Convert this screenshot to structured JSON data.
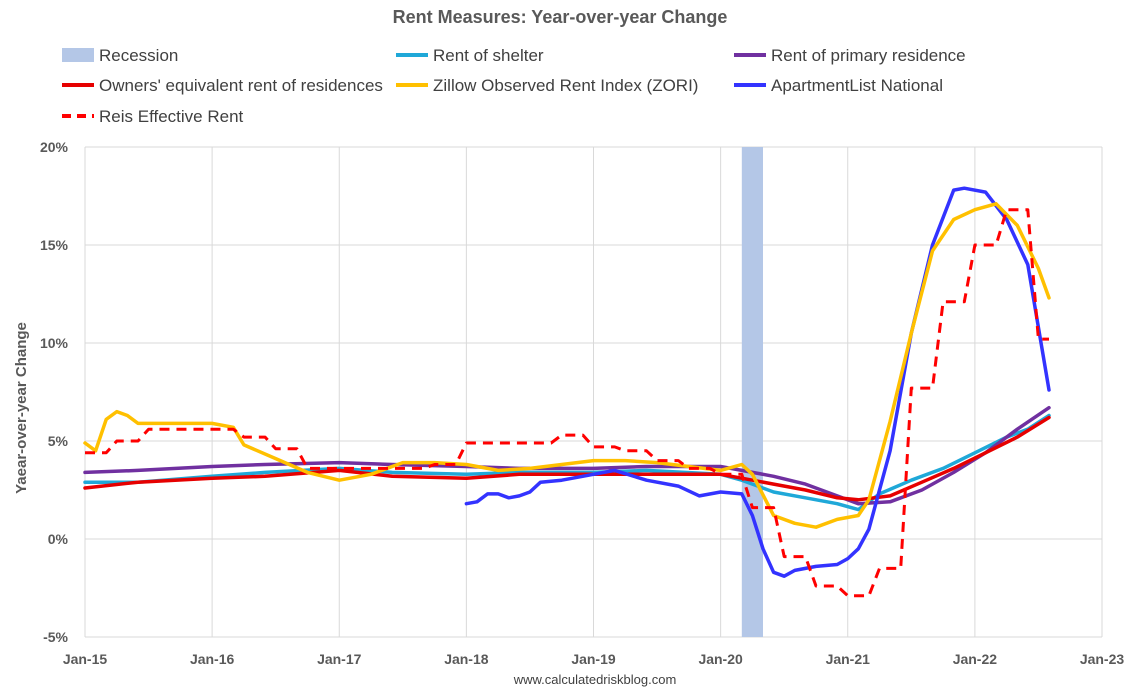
{
  "chart_data": {
    "type": "line",
    "title": "Rent Measures: Year-over-year Change",
    "ylabel": "Yaear-over-year Change",
    "xlabel": "",
    "credit": "www.calculatedriskblog.com",
    "ylim": [
      -5,
      20
    ],
    "yticks": [
      -5,
      0,
      5,
      10,
      15,
      20
    ],
    "ytick_labels": [
      "-5%",
      "0%",
      "5%",
      "10%",
      "15%",
      "20%"
    ],
    "xlim": [
      "2015-01",
      "2023-01"
    ],
    "xticks": [
      "2015-01",
      "2016-01",
      "2017-01",
      "2018-01",
      "2019-01",
      "2020-01",
      "2021-01",
      "2022-01",
      "2023-01"
    ],
    "xtick_labels": [
      "Jan-15",
      "Jan-16",
      "Jan-17",
      "Jan-18",
      "Jan-19",
      "Jan-20",
      "Jan-21",
      "Jan-22",
      "Jan-23"
    ],
    "grid": "horizontal and vertical",
    "legend_position": "top",
    "recession": {
      "name": "Recession",
      "start": "2020-03",
      "end": "2020-04",
      "color": "#b4c7e7"
    },
    "series": [
      {
        "name": "Rent of shelter",
        "color": "#1fa8d8",
        "dash": "solid",
        "points": [
          [
            "2015-01",
            2.9
          ],
          [
            "2015-06",
            2.9
          ],
          [
            "2016-01",
            3.2
          ],
          [
            "2016-06",
            3.4
          ],
          [
            "2017-01",
            3.6
          ],
          [
            "2017-06",
            3.4
          ],
          [
            "2018-01",
            3.3
          ],
          [
            "2018-06",
            3.4
          ],
          [
            "2019-01",
            3.4
          ],
          [
            "2019-06",
            3.5
          ],
          [
            "2020-01",
            3.3
          ],
          [
            "2020-03",
            3.0
          ],
          [
            "2020-06",
            2.4
          ],
          [
            "2020-09",
            2.1
          ],
          [
            "2020-12",
            1.8
          ],
          [
            "2021-02",
            1.5
          ],
          [
            "2021-04",
            2.3
          ],
          [
            "2021-07",
            3.0
          ],
          [
            "2021-10",
            3.6
          ],
          [
            "2022-01",
            4.4
          ],
          [
            "2022-04",
            5.2
          ],
          [
            "2022-06",
            5.6
          ],
          [
            "2022-08",
            6.3
          ]
        ]
      },
      {
        "name": "Rent of primary residence",
        "color": "#7030a0",
        "dash": "solid",
        "points": [
          [
            "2015-01",
            3.4
          ],
          [
            "2015-06",
            3.5
          ],
          [
            "2016-01",
            3.7
          ],
          [
            "2016-06",
            3.8
          ],
          [
            "2017-01",
            3.9
          ],
          [
            "2017-06",
            3.8
          ],
          [
            "2018-01",
            3.7
          ],
          [
            "2018-06",
            3.6
          ],
          [
            "2019-01",
            3.6
          ],
          [
            "2019-06",
            3.7
          ],
          [
            "2020-01",
            3.7
          ],
          [
            "2020-03",
            3.5
          ],
          [
            "2020-06",
            3.2
          ],
          [
            "2020-09",
            2.8
          ],
          [
            "2020-12",
            2.2
          ],
          [
            "2021-02",
            1.8
          ],
          [
            "2021-05",
            1.9
          ],
          [
            "2021-08",
            2.5
          ],
          [
            "2021-11",
            3.4
          ],
          [
            "2022-02",
            4.4
          ],
          [
            "2022-05",
            5.6
          ],
          [
            "2022-08",
            6.7
          ]
        ]
      },
      {
        "name": "Owners' equivalent rent of residences",
        "color": "#e60000",
        "dash": "solid",
        "points": [
          [
            "2015-01",
            2.6
          ],
          [
            "2015-06",
            2.9
          ],
          [
            "2016-01",
            3.1
          ],
          [
            "2016-06",
            3.2
          ],
          [
            "2017-01",
            3.5
          ],
          [
            "2017-06",
            3.2
          ],
          [
            "2018-01",
            3.1
          ],
          [
            "2018-06",
            3.3
          ],
          [
            "2019-01",
            3.3
          ],
          [
            "2019-06",
            3.3
          ],
          [
            "2020-01",
            3.3
          ],
          [
            "2020-03",
            3.1
          ],
          [
            "2020-06",
            2.8
          ],
          [
            "2020-09",
            2.5
          ],
          [
            "2020-12",
            2.1
          ],
          [
            "2021-02",
            2.0
          ],
          [
            "2021-05",
            2.2
          ],
          [
            "2021-08",
            2.9
          ],
          [
            "2021-11",
            3.6
          ],
          [
            "2022-02",
            4.4
          ],
          [
            "2022-05",
            5.2
          ],
          [
            "2022-08",
            6.2
          ]
        ]
      },
      {
        "name": "Zillow Observed Rent Index (ZORI)",
        "color": "#ffc000",
        "dash": "solid",
        "points": [
          [
            "2015-01",
            4.9
          ],
          [
            "2015-02",
            4.5
          ],
          [
            "2015-03",
            6.1
          ],
          [
            "2015-04",
            6.5
          ],
          [
            "2015-05",
            6.3
          ],
          [
            "2015-06",
            5.9
          ],
          [
            "2015-09",
            5.9
          ],
          [
            "2016-01",
            5.9
          ],
          [
            "2016-03",
            5.7
          ],
          [
            "2016-04",
            4.8
          ],
          [
            "2016-07",
            4.1
          ],
          [
            "2016-10",
            3.4
          ],
          [
            "2017-01",
            3.0
          ],
          [
            "2017-04",
            3.3
          ],
          [
            "2017-07",
            3.9
          ],
          [
            "2017-10",
            3.9
          ],
          [
            "2018-01",
            3.8
          ],
          [
            "2018-04",
            3.5
          ],
          [
            "2018-07",
            3.6
          ],
          [
            "2018-10",
            3.8
          ],
          [
            "2019-01",
            4.0
          ],
          [
            "2019-04",
            4.0
          ],
          [
            "2019-07",
            3.9
          ],
          [
            "2019-10",
            3.7
          ],
          [
            "2020-01",
            3.5
          ],
          [
            "2020-03",
            3.8
          ],
          [
            "2020-04",
            3.3
          ],
          [
            "2020-06",
            1.2
          ],
          [
            "2020-08",
            0.8
          ],
          [
            "2020-10",
            0.6
          ],
          [
            "2020-12",
            1.0
          ],
          [
            "2021-02",
            1.2
          ],
          [
            "2021-03",
            2.0
          ],
          [
            "2021-05",
            6.0
          ],
          [
            "2021-07",
            10.5
          ],
          [
            "2021-09",
            14.7
          ],
          [
            "2021-11",
            16.3
          ],
          [
            "2022-01",
            16.8
          ],
          [
            "2022-03",
            17.1
          ],
          [
            "2022-05",
            16.0
          ],
          [
            "2022-07",
            13.8
          ],
          [
            "2022-08",
            12.3
          ]
        ]
      },
      {
        "name": "ApartmentList National",
        "color": "#3333ff",
        "dash": "solid",
        "points": [
          [
            "2018-01",
            1.8
          ],
          [
            "2018-02",
            1.9
          ],
          [
            "2018-03",
            2.3
          ],
          [
            "2018-04",
            2.3
          ],
          [
            "2018-05",
            2.1
          ],
          [
            "2018-06",
            2.2
          ],
          [
            "2018-07",
            2.4
          ],
          [
            "2018-08",
            2.9
          ],
          [
            "2018-10",
            3.0
          ],
          [
            "2019-01",
            3.3
          ],
          [
            "2019-03",
            3.5
          ],
          [
            "2019-06",
            3.0
          ],
          [
            "2019-09",
            2.7
          ],
          [
            "2019-11",
            2.2
          ],
          [
            "2020-01",
            2.4
          ],
          [
            "2020-03",
            2.3
          ],
          [
            "2020-04",
            1.2
          ],
          [
            "2020-05",
            -0.5
          ],
          [
            "2020-06",
            -1.7
          ],
          [
            "2020-07",
            -1.9
          ],
          [
            "2020-08",
            -1.6
          ],
          [
            "2020-10",
            -1.4
          ],
          [
            "2020-12",
            -1.3
          ],
          [
            "2021-01",
            -1.0
          ],
          [
            "2021-02",
            -0.5
          ],
          [
            "2021-03",
            0.5
          ],
          [
            "2021-05",
            4.5
          ],
          [
            "2021-07",
            10.5
          ],
          [
            "2021-09",
            15.0
          ],
          [
            "2021-11",
            17.8
          ],
          [
            "2021-12",
            17.9
          ],
          [
            "2022-02",
            17.7
          ],
          [
            "2022-04",
            16.3
          ],
          [
            "2022-06",
            14.0
          ],
          [
            "2022-07",
            10.8
          ],
          [
            "2022-08",
            7.6
          ]
        ]
      },
      {
        "name": "Reis Effective Rent",
        "color": "#ff0000",
        "dash": "dashed",
        "points": [
          [
            "2015-01",
            4.4
          ],
          [
            "2015-03",
            4.4
          ],
          [
            "2015-04",
            5.0
          ],
          [
            "2015-06",
            5.0
          ],
          [
            "2015-07",
            5.6
          ],
          [
            "2015-12",
            5.6
          ],
          [
            "2016-03",
            5.6
          ],
          [
            "2016-04",
            5.2
          ],
          [
            "2016-06",
            5.2
          ],
          [
            "2016-07",
            4.6
          ],
          [
            "2016-09",
            4.6
          ],
          [
            "2016-10",
            3.6
          ],
          [
            "2017-09",
            3.6
          ],
          [
            "2017-10",
            3.8
          ],
          [
            "2017-12",
            3.8
          ],
          [
            "2018-01",
            4.9
          ],
          [
            "2018-09",
            4.9
          ],
          [
            "2018-10",
            5.3
          ],
          [
            "2018-12",
            5.3
          ],
          [
            "2019-01",
            4.7
          ],
          [
            "2019-03",
            4.7
          ],
          [
            "2019-04",
            4.5
          ],
          [
            "2019-06",
            4.5
          ],
          [
            "2019-07",
            4.0
          ],
          [
            "2019-09",
            4.0
          ],
          [
            "2019-10",
            3.6
          ],
          [
            "2019-12",
            3.6
          ],
          [
            "2020-01",
            3.3
          ],
          [
            "2020-03",
            3.3
          ],
          [
            "2020-04",
            1.6
          ],
          [
            "2020-06",
            1.6
          ],
          [
            "2020-07",
            -0.9
          ],
          [
            "2020-09",
            -0.9
          ],
          [
            "2020-10",
            -2.4
          ],
          [
            "2020-12",
            -2.4
          ],
          [
            "2021-01",
            -2.9
          ],
          [
            "2021-03",
            -2.9
          ],
          [
            "2021-04",
            -1.5
          ],
          [
            "2021-06",
            -1.5
          ],
          [
            "2021-07",
            7.7
          ],
          [
            "2021-09",
            7.7
          ],
          [
            "2021-10",
            12.1
          ],
          [
            "2021-12",
            12.1
          ],
          [
            "2022-01",
            15.0
          ],
          [
            "2022-03",
            15.0
          ],
          [
            "2022-04",
            16.8
          ],
          [
            "2022-06",
            16.8
          ],
          [
            "2022-07",
            10.2
          ],
          [
            "2022-08",
            10.2
          ]
        ]
      }
    ],
    "legend": [
      {
        "label": "Recession",
        "kind": "band",
        "color": "#b4c7e7"
      },
      {
        "label": "Rent of shelter",
        "kind": "line",
        "color": "#1fa8d8"
      },
      {
        "label": "Rent of primary residence",
        "kind": "line",
        "color": "#7030a0"
      },
      {
        "label": "Owners' equivalent rent of residences",
        "kind": "line",
        "color": "#e60000"
      },
      {
        "label": "Zillow Observed Rent Index (ZORI)",
        "kind": "line",
        "color": "#ffc000"
      },
      {
        "label": "ApartmentList National",
        "kind": "line",
        "color": "#3333ff"
      },
      {
        "label": "Reis Effective Rent",
        "kind": "dashed",
        "color": "#ff0000"
      }
    ]
  }
}
